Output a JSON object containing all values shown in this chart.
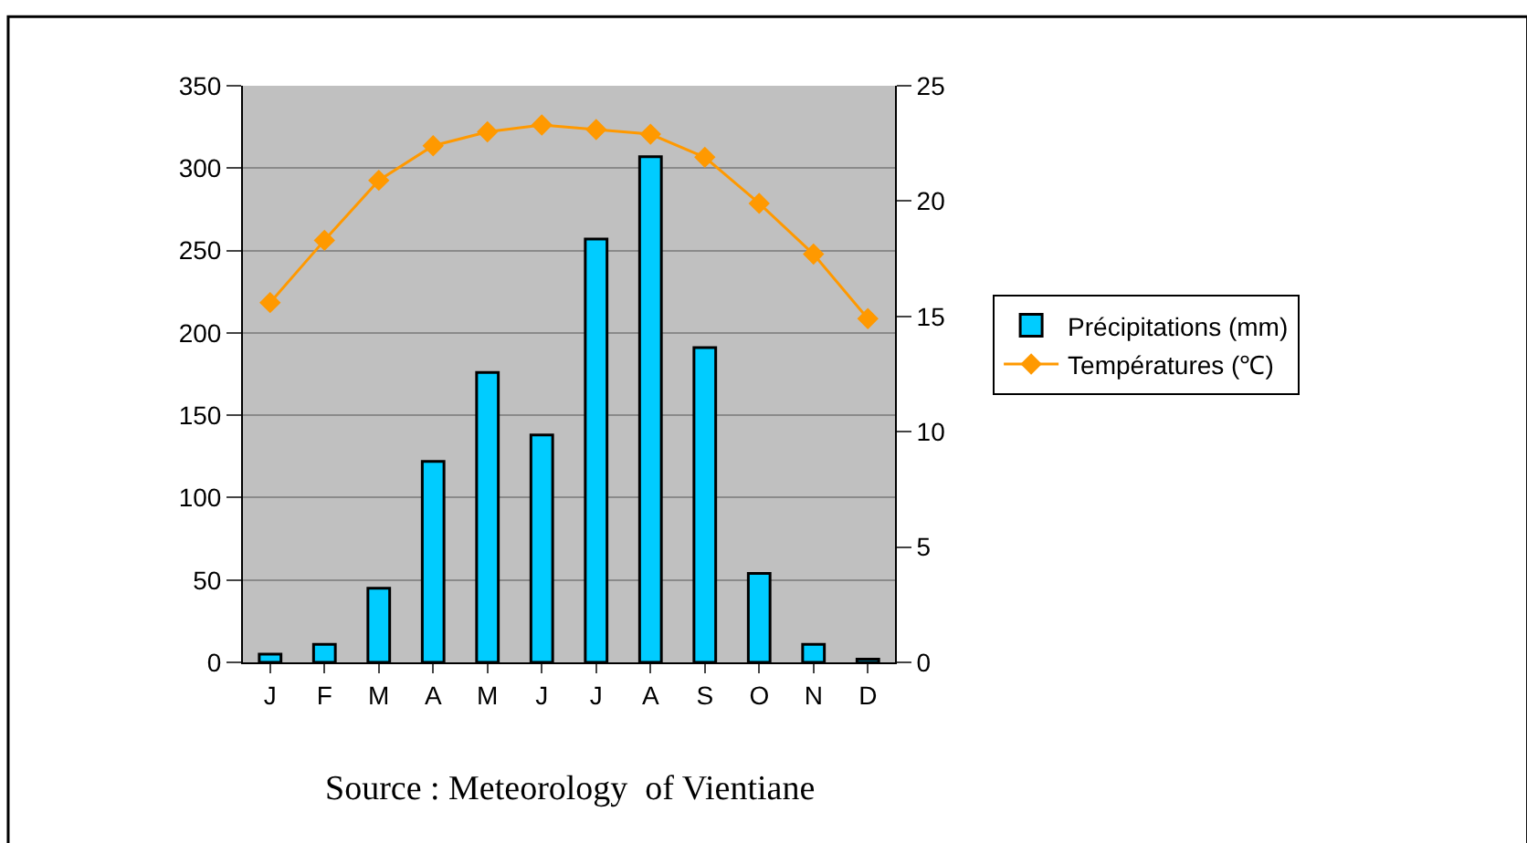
{
  "chart_data": {
    "type": "bar",
    "categories": [
      "J",
      "F",
      "M",
      "A",
      "M",
      "J",
      "J",
      "A",
      "S",
      "O",
      "N",
      "D"
    ],
    "series": [
      {
        "name": "Précipitations (mm)",
        "color": "#00ccff",
        "values": [
          5,
          11,
          45,
          122,
          176,
          138,
          257,
          307,
          191,
          54,
          11,
          2
        ]
      },
      {
        "name": "Températures (℃)",
        "type": "line",
        "axis": "y2",
        "color": "#ff9900",
        "marker": "diamond",
        "values": [
          15.6,
          18.3,
          20.9,
          22.4,
          23.0,
          23.3,
          23.1,
          22.9,
          21.9,
          19.9,
          17.7,
          14.9
        ]
      }
    ],
    "ylim": [
      0,
      350
    ],
    "yticks": [
      0,
      50,
      100,
      150,
      200,
      250,
      300,
      350
    ],
    "y2lim": [
      0,
      25
    ],
    "y2ticks": [
      0,
      5,
      10,
      15,
      20,
      25
    ],
    "grid": "y",
    "legend": "right",
    "annotations": [
      "Source : Meteorology  of Vientiane"
    ]
  }
}
